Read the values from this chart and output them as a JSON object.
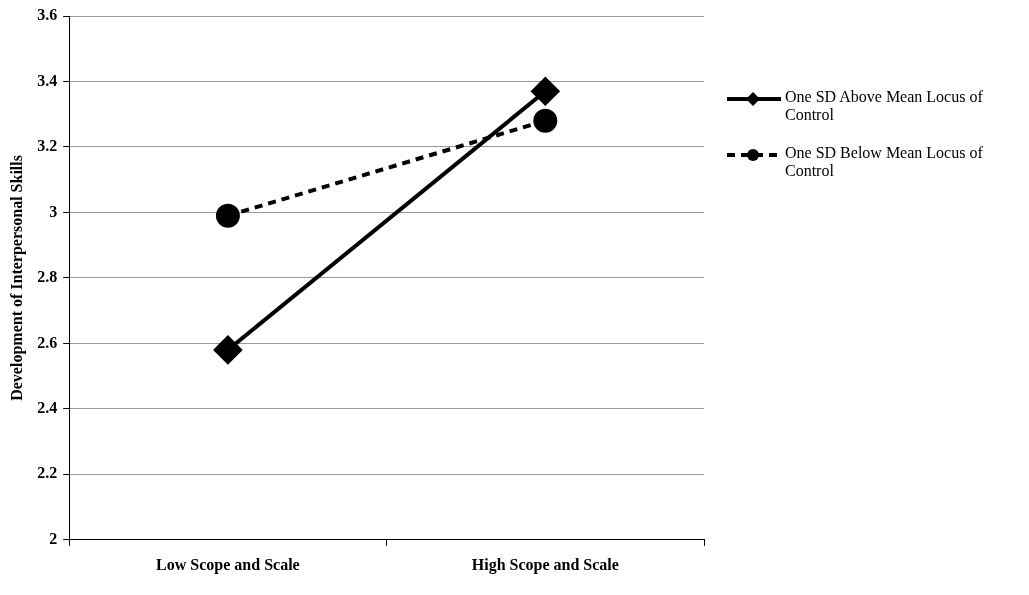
{
  "chart_data": {
    "type": "line",
    "ylabel": "Development of Interpersonal Skills",
    "categories": [
      "Low Scope and Scale",
      "High Scope and Scale"
    ],
    "series": [
      {
        "name": "One SD Above Mean Locus of Control",
        "color": "#000000",
        "values": [
          2.58,
          3.37
        ],
        "marker": "diamond",
        "line_style": "solid"
      },
      {
        "name": "One SD Below Mean Locus of Control",
        "color": "#000000",
        "values": [
          2.99,
          3.28
        ],
        "marker": "circle",
        "line_style": "dashed"
      }
    ],
    "ylim": [
      2,
      3.6
    ],
    "yticks": [
      2,
      2.2,
      2.4,
      2.6,
      2.8,
      3,
      3.2,
      3.4,
      3.6
    ],
    "grid": "y",
    "legend": "right"
  }
}
